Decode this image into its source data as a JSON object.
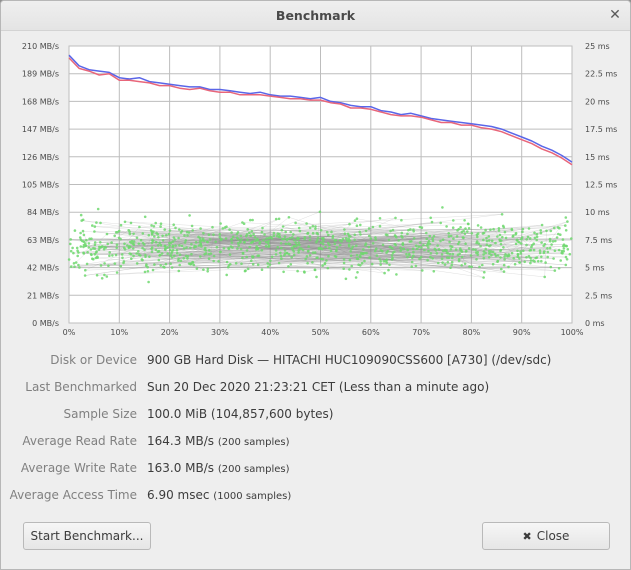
{
  "window": {
    "title": "Benchmark"
  },
  "chart_data": {
    "type": "line",
    "xlabel": "",
    "x_axis": {
      "range": [
        0,
        100
      ],
      "unit": "%",
      "ticks": [
        "0%",
        "10%",
        "20%",
        "30%",
        "40%",
        "50%",
        "60%",
        "70%",
        "80%",
        "90%",
        "100%"
      ]
    },
    "y_left": {
      "range": [
        0,
        210
      ],
      "unit": "MB/s",
      "ticks": [
        "0 MB/s",
        "21 MB/s",
        "42 MB/s",
        "63 MB/s",
        "84 MB/s",
        "105 MB/s",
        "126 MB/s",
        "147 MB/s",
        "168 MB/s",
        "189 MB/s",
        "210 MB/s"
      ]
    },
    "y_right": {
      "range": [
        0,
        25
      ],
      "unit": "ms",
      "ticks": [
        "0 ms",
        "2.5 ms",
        "5 ms",
        "7.5 ms",
        "10 ms",
        "12.5 ms",
        "15 ms",
        "17.5 ms",
        "20 ms",
        "22.5 ms",
        "25 ms"
      ]
    },
    "grid": true,
    "series": [
      {
        "color": "#5a66e8",
        "x": [
          0,
          2,
          4,
          6,
          8,
          10,
          12,
          14,
          16,
          18,
          20,
          22,
          24,
          26,
          28,
          30,
          32,
          34,
          36,
          38,
          40,
          42,
          44,
          46,
          48,
          50,
          52,
          54,
          56,
          58,
          60,
          62,
          64,
          66,
          68,
          70,
          72,
          74,
          76,
          78,
          80,
          82,
          84,
          86,
          88,
          90,
          92,
          94,
          96,
          98,
          100
        ],
        "y": [
          203,
          195,
          192,
          191,
          190,
          186,
          185,
          186,
          183,
          182,
          181,
          180,
          179,
          179,
          177,
          177,
          176,
          175,
          174,
          175,
          173,
          172,
          172,
          171,
          170,
          171,
          168,
          167,
          165,
          164,
          164,
          161,
          160,
          158,
          159,
          157,
          155,
          154,
          153,
          152,
          151,
          150,
          149,
          147,
          144,
          141,
          138,
          134,
          131,
          127,
          122
        ]
      },
      {
        "color": "#e8667a",
        "x": [
          0,
          2,
          4,
          6,
          8,
          10,
          12,
          14,
          16,
          18,
          20,
          22,
          24,
          26,
          28,
          30,
          32,
          34,
          36,
          38,
          40,
          42,
          44,
          46,
          48,
          50,
          52,
          54,
          56,
          58,
          60,
          62,
          64,
          66,
          68,
          70,
          72,
          74,
          76,
          78,
          80,
          82,
          84,
          86,
          88,
          90,
          92,
          94,
          96,
          98,
          100
        ],
        "y": [
          201,
          193,
          191,
          188,
          189,
          184,
          184,
          183,
          182,
          180,
          180,
          178,
          177,
          178,
          176,
          175,
          175,
          173,
          173,
          173,
          172,
          171,
          170,
          170,
          169,
          169,
          167,
          166,
          163,
          163,
          162,
          160,
          158,
          157,
          157,
          156,
          154,
          152,
          152,
          150,
          150,
          148,
          147,
          145,
          142,
          139,
          136,
          132,
          129,
          125,
          120
        ]
      }
    ],
    "access_times": {
      "samples": 1000,
      "range_ms": [
        2.5,
        12.5
      ],
      "typical_ms": 6.9,
      "color": "#6ed86e"
    }
  },
  "info": {
    "rows": [
      {
        "label": "Disk or Device",
        "value": "900 GB Hard Disk — HITACHI HUC109090CSS600 [A730] (/dev/sdc)",
        "suffix": ""
      },
      {
        "label": "Last Benchmarked",
        "value": "Sun 20 Dec 2020 21:23:21 CET (Less than a minute ago)",
        "suffix": ""
      },
      {
        "label": "Sample Size",
        "value": "100.0 MiB (104,857,600 bytes)",
        "suffix": ""
      },
      {
        "label": "Average Read Rate",
        "value": "164.3 MB/s",
        "suffix": "(200 samples)"
      },
      {
        "label": "Average Write Rate",
        "value": "163.0 MB/s",
        "suffix": "(200 samples)"
      },
      {
        "label": "Average Access Time",
        "value": "6.90 msec",
        "suffix": "(1000 samples)"
      }
    ]
  },
  "buttons": {
    "start": "Start Benchmark...",
    "close": "Close"
  }
}
